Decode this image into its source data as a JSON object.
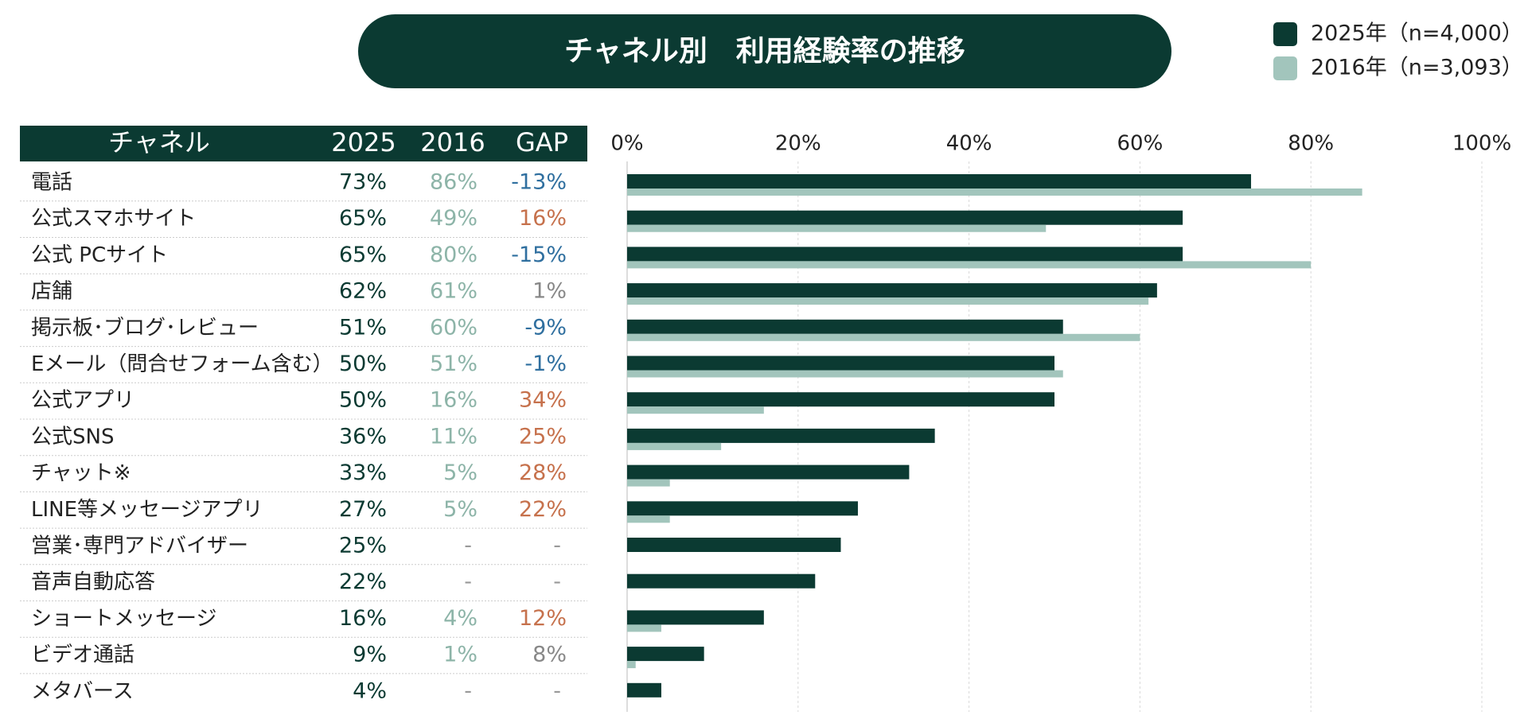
{
  "chart_data": {
    "type": "bar",
    "orientation": "horizontal",
    "title": "チャネル別　利用経験率の推移",
    "table_header": [
      "チャネル",
      "2025",
      "2016",
      "GAP"
    ],
    "categories": [
      "電話",
      "公式スマホサイト",
      "公式 PCサイト",
      "店舗",
      "掲示板･ブログ･レビュー",
      "Eメール（問合せフォーム含む）",
      "公式アプリ",
      "公式SNS",
      "チャット※",
      "LINE等メッセージアプリ",
      "営業･専門アドバイザー",
      "音声自動応答",
      "ショートメッセージ",
      "ビデオ通話",
      "メタバース"
    ],
    "series": [
      {
        "name": "2025年（n=4,000）",
        "color": "#0b3a32",
        "values": [
          73,
          65,
          65,
          62,
          51,
          50,
          50,
          36,
          33,
          27,
          25,
          22,
          16,
          9,
          4
        ],
        "value_labels": [
          "73%",
          "65%",
          "65%",
          "62%",
          "51%",
          "50%",
          "50%",
          "36%",
          "33%",
          "27%",
          "25%",
          "22%",
          "16%",
          "9%",
          "4%"
        ]
      },
      {
        "name": "2016年（n=3,093）",
        "color": "#a2c5bc",
        "values": [
          86,
          49,
          80,
          61,
          60,
          51,
          16,
          11,
          5,
          5,
          null,
          null,
          4,
          1,
          null
        ],
        "value_labels": [
          "86%",
          "49%",
          "80%",
          "61%",
          "60%",
          "51%",
          "16%",
          "11%",
          "5%",
          "5%",
          "-",
          "-",
          "4%",
          "1%",
          "-"
        ]
      }
    ],
    "gap": {
      "values": [
        -13,
        16,
        -15,
        1,
        -9,
        -1,
        34,
        25,
        28,
        22,
        null,
        null,
        12,
        8,
        null
      ],
      "value_labels": [
        "-13%",
        "16%",
        "-15%",
        "1%",
        "-9%",
        "-1%",
        "34%",
        "25%",
        "28%",
        "22%",
        "-",
        "-",
        "12%",
        "8%",
        "-"
      ],
      "colors": {
        "negative": "#2f6f9f",
        "positive": "#c6714c",
        "small": "#888888"
      }
    },
    "xlim": [
      0,
      100
    ],
    "xticks": [
      {
        "value": 0,
        "label": "0%"
      },
      {
        "value": 20,
        "label": "20%"
      },
      {
        "value": 40,
        "label": "40%"
      },
      {
        "value": 60,
        "label": "60%"
      },
      {
        "value": 80,
        "label": "80%"
      },
      {
        "value": 100,
        "label": "100%"
      }
    ],
    "grid": true
  }
}
